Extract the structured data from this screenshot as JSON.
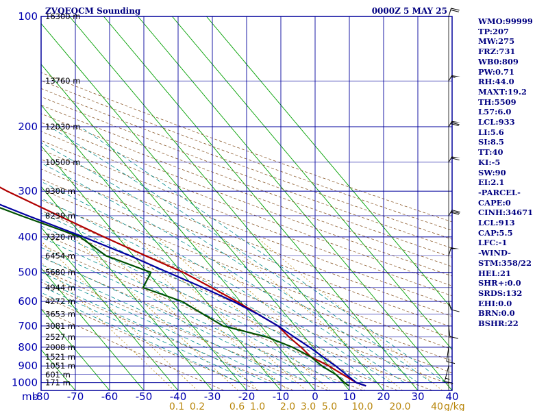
{
  "header": {
    "station": "ZVQEQCM Sounding",
    "valid_time": "0000Z  5 MAY 25"
  },
  "indices": [
    "WMO:99999",
    "TP:207",
    "MW:275",
    "FRZ:731",
    "WB0:809",
    "PW:0.71",
    "RH:44.0",
    "MAXT:19.2",
    "TH:5509",
    "L57:6.0",
    "LCL:933",
    "LI:5.6",
    "SI:8.5",
    "TT:40",
    "KI:-5",
    "SW:90",
    "EI:2.1",
    "-PARCEL-",
    "CAPE:0",
    "CINH:34671",
    "LCL:913",
    "CAP:5.5",
    "LFC:-1",
    "-WIND-",
    "STM:358/22",
    "HEL:21",
    "SHR+:0.0",
    "SRDS:132",
    "EHI:0.0",
    "BRN:0.0",
    "BSHR:22"
  ],
  "chart_data": {
    "type": "line",
    "title": "ZVQEQCM Sounding",
    "pressure_unit_label": "mb",
    "mixing_ratio_unit": "g/kg",
    "y_axis_pressure_ticks": [
      "100",
      "200",
      "300",
      "400",
      "500",
      "600",
      "700",
      "800",
      "900",
      "1000"
    ],
    "height_labels": [
      {
        "p": 100,
        "text": "16300 m"
      },
      {
        "p": 150,
        "text": "13760 m"
      },
      {
        "p": 200,
        "text": "12030 m"
      },
      {
        "p": 250,
        "text": "10500 m"
      },
      {
        "p": 300,
        "text": "9300 m"
      },
      {
        "p": 350,
        "text": "8239 m"
      },
      {
        "p": 400,
        "text": "7320 m"
      },
      {
        "p": 450,
        "text": "6454 m"
      },
      {
        "p": 500,
        "text": "5680 m"
      },
      {
        "p": 550,
        "text": "4944 m"
      },
      {
        "p": 600,
        "text": "4272 m"
      },
      {
        "p": 650,
        "text": "3653 m"
      },
      {
        "p": 700,
        "text": "3081 m"
      },
      {
        "p": 750,
        "text": "2527 m"
      },
      {
        "p": 800,
        "text": "2008 m"
      },
      {
        "p": 850,
        "text": "1521 m"
      },
      {
        "p": 900,
        "text": "1051 m"
      },
      {
        "p": 950,
        "text": "601 m"
      },
      {
        "p": 1000,
        "text": "171 m"
      }
    ],
    "x_axis_temperature_ticks": [
      "-80",
      "-70",
      "-60",
      "-50",
      "-40",
      "-30",
      "-20",
      "-10",
      "0",
      "10",
      "20",
      "30",
      "40"
    ],
    "mixing_ratio_ticks": [
      "0.1",
      "0.2",
      "0.6",
      "1.0",
      "2.0",
      "3.0",
      "5.0",
      "10.0",
      "20.0",
      "40"
    ],
    "pressure_range": [
      100,
      1050
    ],
    "temperature_range_at_bottom": [
      -80,
      50
    ],
    "grid": true,
    "series": [
      {
        "key": "temperature",
        "color": "#b00000",
        "points": [
          [
            100,
            -57.5
          ],
          [
            150,
            -57
          ],
          [
            190,
            -57
          ],
          [
            200,
            -56.5
          ],
          [
            250,
            -50
          ],
          [
            300,
            -41
          ],
          [
            350,
            -32
          ],
          [
            400,
            -24
          ],
          [
            450,
            -16.5
          ],
          [
            500,
            -9.5
          ],
          [
            550,
            -5
          ],
          [
            600,
            -1
          ],
          [
            650,
            2
          ],
          [
            700,
            5
          ],
          [
            750,
            5.5
          ],
          [
            800,
            6.5
          ],
          [
            850,
            7
          ],
          [
            900,
            10
          ],
          [
            950,
            12
          ],
          [
            1000,
            14
          ],
          [
            1020,
            16
          ]
        ]
      },
      {
        "key": "dewpoint",
        "color": "#005000",
        "points": [
          [
            180,
            -72
          ],
          [
            200,
            -70
          ],
          [
            250,
            -64
          ],
          [
            300,
            -56
          ],
          [
            350,
            -43
          ],
          [
            400,
            -31
          ],
          [
            450,
            -28
          ],
          [
            500,
            -19
          ],
          [
            550,
            -25
          ],
          [
            600,
            -17
          ],
          [
            650,
            -14
          ],
          [
            700,
            -11
          ],
          [
            750,
            -1
          ],
          [
            800,
            4
          ],
          [
            850,
            7
          ],
          [
            900,
            8
          ],
          [
            950,
            10
          ],
          [
            1000,
            10.5
          ],
          [
            1020,
            11
          ]
        ]
      },
      {
        "key": "parcel",
        "color": "#0000a0",
        "points": [
          [
            200,
            -77
          ],
          [
            250,
            -64
          ],
          [
            300,
            -53
          ],
          [
            350,
            -41
          ],
          [
            400,
            -30
          ],
          [
            450,
            -21
          ],
          [
            500,
            -14
          ],
          [
            550,
            -7.5
          ],
          [
            600,
            -2
          ],
          [
            650,
            2
          ],
          [
            700,
            5
          ],
          [
            750,
            7
          ],
          [
            800,
            9
          ],
          [
            850,
            10.5
          ],
          [
            900,
            12
          ],
          [
            950,
            13
          ],
          [
            1000,
            14
          ],
          [
            1020,
            16
          ]
        ]
      }
    ],
    "wind_barbs": [
      {
        "p": 100,
        "dir": 240,
        "spd": 20
      },
      {
        "p": 150,
        "dir": 250,
        "spd": 55
      },
      {
        "p": 200,
        "dir": 250,
        "spd": 70
      },
      {
        "p": 250,
        "dir": 250,
        "spd": 60
      },
      {
        "p": 350,
        "dir": 250,
        "spd": 30
      },
      {
        "p": 450,
        "dir": 240,
        "spd": 50
      },
      {
        "p": 600,
        "dir": 300,
        "spd": 10
      },
      {
        "p": 700,
        "dir": 310,
        "spd": 10
      },
      {
        "p": 800,
        "dir": 330,
        "spd": 10
      },
      {
        "p": 900,
        "dir": 340,
        "spd": 15
      }
    ],
    "colors": {
      "frame": "#00009c",
      "isobar": "#00009c",
      "isotherm": "#00a000",
      "dry_adiabat": "#8b5a2b",
      "moist_adiabat": "#008b8b",
      "mixing_ratio": "#b8860b",
      "title": "#000080"
    }
  }
}
